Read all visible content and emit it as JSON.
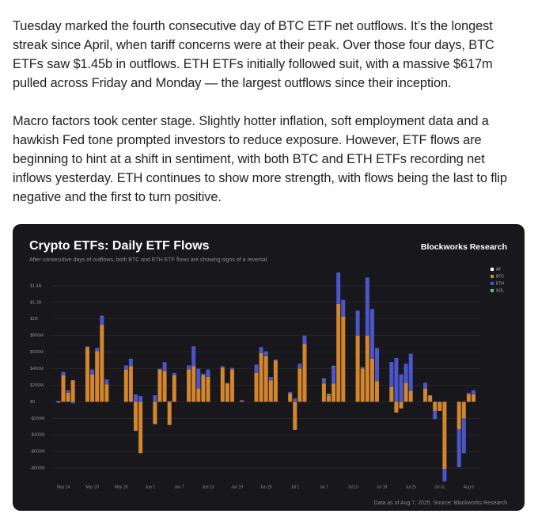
{
  "article": {
    "paragraphs": [
      "Tuesday marked the fourth consecutive day of BTC ETF net outflows. It’s the longest streak since April, when tariff concerns were at their peak. Over those four days, BTC ETFs saw $1.45b in outflows. ETH ETFs initially followed suit, with a massive $617m pulled across Friday and Monday — the largest outflows since their inception.",
      "Macro factors took center stage. Slightly hotter inflation, soft employment data and a hawkish Fed tone prompted investors to reduce exposure. However, ETF flows are beginning to hint at a shift in sentiment, with both BTC and ETH ETFs recording net inflows yesterday. ETH continues to show more strength, with flows being the last to flip negative and the first to turn positive."
    ]
  },
  "chart_data": {
    "type": "stacked_bar",
    "title": "Crypto ETFs: Daily ETF Flows",
    "subtitle": "After consecutive days of outflows, both BTC and ETH ETF flows are showing signs of a reversal",
    "brand": "Blockworks Research",
    "footer": "Data as of Aug 7, 2025. Source: Blockworks Research",
    "categories": [
      null,
      "May 14",
      null,
      null,
      null,
      null,
      null,
      "May 20",
      null,
      null,
      null,
      null,
      null,
      "May 26",
      null,
      null,
      null,
      null,
      null,
      "Jun 1",
      null,
      null,
      null,
      null,
      null,
      "Jun 7",
      null,
      null,
      null,
      null,
      null,
      "Jun 13",
      null,
      null,
      null,
      null,
      null,
      "Jun 19",
      null,
      null,
      null,
      null,
      null,
      "Jun 25",
      null,
      null,
      null,
      null,
      null,
      "Jul 1",
      null,
      null,
      null,
      null,
      null,
      "Jul 7",
      null,
      null,
      null,
      null,
      null,
      "Jul 13",
      null,
      null,
      null,
      null,
      null,
      "Jul 19",
      null,
      null,
      null,
      null,
      null,
      "Jul 25",
      null,
      null,
      null,
      null,
      null,
      "Jul 31",
      null,
      null,
      null,
      null,
      null,
      "Aug 6",
      null
    ],
    "series": [
      {
        "name": "All",
        "color": "#ffffff",
        "values": [
          null,
          null,
          null,
          null,
          null,
          null,
          null,
          null,
          null,
          null,
          null,
          null,
          null,
          null,
          null,
          null,
          null,
          null,
          null,
          null,
          null,
          null,
          null,
          null,
          null,
          null,
          null,
          null,
          null,
          null,
          null,
          null,
          null,
          null,
          null,
          null,
          null,
          null,
          null,
          null,
          null,
          null,
          null,
          null,
          null,
          null,
          null,
          null,
          null,
          null,
          null,
          null,
          null,
          null,
          null,
          null,
          null,
          null,
          null,
          null,
          null,
          null,
          null,
          null,
          null,
          null,
          null,
          null,
          null,
          null,
          null,
          null,
          null,
          null,
          null,
          null,
          null,
          null,
          null,
          null,
          null,
          null,
          null,
          null,
          null,
          null,
          null
        ]
      },
      {
        "name": "BTC",
        "color": "#d4862e",
        "values": [
          -10,
          320,
          110,
          260,
          null,
          null,
          660,
          330,
          610,
          930,
          210,
          null,
          null,
          null,
          390,
          430,
          -350,
          -620,
          null,
          null,
          -270,
          390,
          370,
          -280,
          320,
          null,
          null,
          390,
          430,
          160,
          320,
          300,
          null,
          null,
          410,
          220,
          390,
          null,
          10,
          null,
          null,
          350,
          590,
          550,
          260,
          500,
          null,
          null,
          100,
          -340,
          400,
          700,
          null,
          null,
          null,
          220,
          80,
          220,
          1180,
          1030,
          null,
          null,
          800,
          400,
          800,
          520,
          250,
          null,
          null,
          180,
          -130,
          -80,
          230,
          130,
          null,
          null,
          160,
          80,
          -110,
          -110,
          -810,
          null,
          null,
          -330,
          -200,
          90,
          90
        ]
      },
      {
        "name": "ETH",
        "color": "#4b56c8",
        "values": [
          10,
          40,
          30,
          -20,
          null,
          null,
          10,
          60,
          40,
          110,
          60,
          null,
          null,
          null,
          50,
          90,
          90,
          70,
          null,
          null,
          80,
          10,
          110,
          10,
          30,
          null,
          null,
          50,
          240,
          240,
          20,
          90,
          null,
          null,
          20,
          10,
          20,
          null,
          10,
          null,
          null,
          100,
          70,
          60,
          40,
          10,
          null,
          null,
          20,
          40,
          60,
          100,
          null,
          null,
          null,
          50,
          0,
          210,
          380,
          200,
          null,
          null,
          300,
          20,
          700,
          600,
          400,
          null,
          null,
          300,
          530,
          330,
          230,
          450,
          null,
          null,
          70,
          0,
          -100,
          0,
          -150,
          null,
          null,
          -460,
          -420,
          20,
          50
        ]
      },
      {
        "name": "SOL",
        "color": "#5cc46a",
        "values": [
          null,
          null,
          null,
          null,
          null,
          null,
          null,
          null,
          null,
          null,
          null,
          null,
          null,
          null,
          null,
          null,
          null,
          null,
          null,
          null,
          null,
          null,
          null,
          null,
          null,
          null,
          null,
          null,
          null,
          null,
          null,
          null,
          null,
          null,
          null,
          null,
          null,
          null,
          null,
          null,
          null,
          null,
          null,
          null,
          null,
          null,
          null,
          null,
          null,
          null,
          null,
          null,
          null,
          null,
          null,
          10,
          15,
          5,
          null,
          null,
          null,
          null,
          null,
          null,
          null,
          null,
          null,
          null,
          null,
          null,
          null,
          null,
          null,
          null,
          null,
          null,
          null,
          null,
          null,
          null,
          null,
          null,
          null,
          null,
          null,
          null,
          null
        ]
      }
    ],
    "ylim": [
      -1000,
      1600
    ],
    "yticks": [
      {
        "value": 1400,
        "label": "$1.4B"
      },
      {
        "value": 1200,
        "label": "$1.2B"
      },
      {
        "value": 1000,
        "label": "$1B"
      },
      {
        "value": 800,
        "label": "$800M"
      },
      {
        "value": 600,
        "label": "$600M"
      },
      {
        "value": 400,
        "label": "$400M"
      },
      {
        "value": 200,
        "label": "$200M"
      },
      {
        "value": 0,
        "label": "$0"
      },
      {
        "value": -200,
        "label": "-$200M"
      },
      {
        "value": -400,
        "label": "-$400M"
      },
      {
        "value": -600,
        "label": "-$600M"
      },
      {
        "value": -800,
        "label": "-$800M"
      }
    ],
    "grid": true,
    "legend": "top-right"
  }
}
